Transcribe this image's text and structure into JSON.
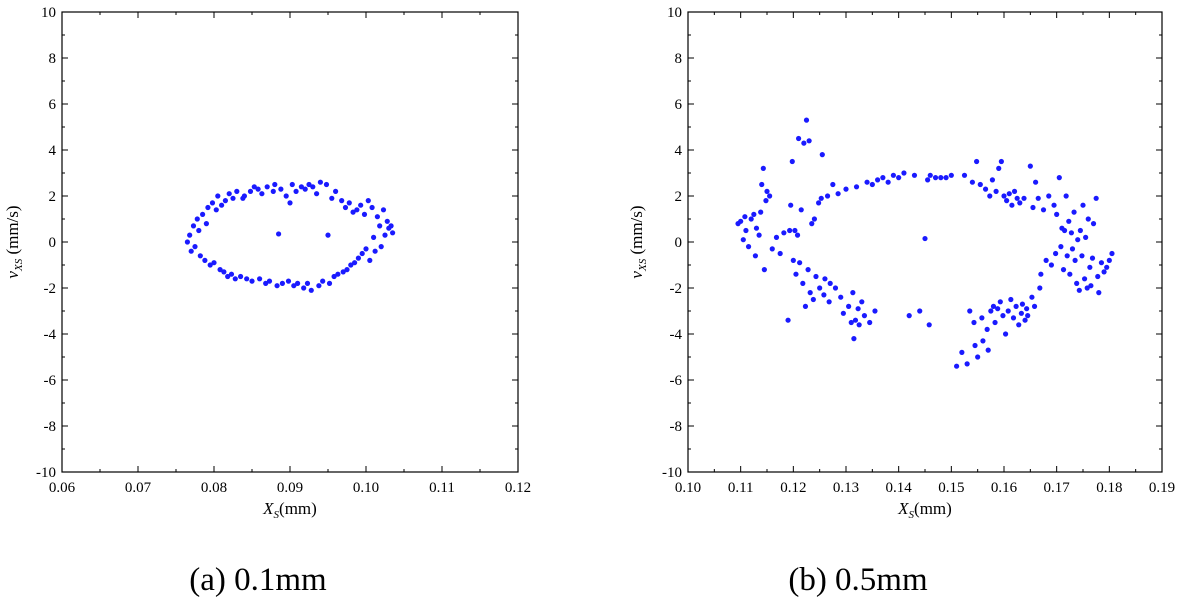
{
  "chart_data": [
    {
      "type": "scatter",
      "caption": "(a) 0.1mm",
      "xlabel": {
        "main": "X",
        "sub": "S",
        "rest": "(mm)"
      },
      "ylabel": {
        "main": "v",
        "sub": "XS",
        "rest": " (mm/s)"
      },
      "xlim": [
        0.06,
        0.12
      ],
      "ylim": [
        -10,
        10
      ],
      "xticks": [
        "0.06",
        "0.07",
        "0.08",
        "0.09",
        "0.10",
        "0.11",
        "0.12"
      ],
      "yticks": [
        "-10",
        "-8",
        "-6",
        "-4",
        "-2",
        "0",
        "2",
        "4",
        "6",
        "8",
        "10"
      ],
      "color": "#1a1aff",
      "points": [
        [
          0.0765,
          0.0
        ],
        [
          0.0768,
          0.3
        ],
        [
          0.077,
          -0.4
        ],
        [
          0.0773,
          0.7
        ],
        [
          0.0775,
          -0.2
        ],
        [
          0.0778,
          1.0
        ],
        [
          0.078,
          0.5
        ],
        [
          0.0782,
          -0.6
        ],
        [
          0.0785,
          1.2
        ],
        [
          0.0788,
          -0.8
        ],
        [
          0.079,
          0.8
        ],
        [
          0.0792,
          1.5
        ],
        [
          0.0795,
          -1.0
        ],
        [
          0.0798,
          1.7
        ],
        [
          0.08,
          -0.9
        ],
        [
          0.0803,
          1.4
        ],
        [
          0.0805,
          2.0
        ],
        [
          0.0808,
          -1.2
        ],
        [
          0.081,
          1.6
        ],
        [
          0.0813,
          -1.3
        ],
        [
          0.0815,
          1.8
        ],
        [
          0.0818,
          -1.5
        ],
        [
          0.082,
          2.1
        ],
        [
          0.0823,
          -1.4
        ],
        [
          0.0825,
          1.9
        ],
        [
          0.0828,
          -1.6
        ],
        [
          0.083,
          2.2
        ],
        [
          0.0835,
          -1.5
        ],
        [
          0.0838,
          1.9
        ],
        [
          0.084,
          2.0
        ],
        [
          0.0843,
          -1.6
        ],
        [
          0.0848,
          2.2
        ],
        [
          0.085,
          -1.7
        ],
        [
          0.0853,
          2.4
        ],
        [
          0.0858,
          2.3
        ],
        [
          0.086,
          -1.6
        ],
        [
          0.0863,
          2.1
        ],
        [
          0.0868,
          -1.8
        ],
        [
          0.087,
          2.4
        ],
        [
          0.0873,
          -1.7
        ],
        [
          0.0878,
          2.2
        ],
        [
          0.088,
          2.5
        ],
        [
          0.0883,
          -1.9
        ],
        [
          0.0885,
          0.35
        ],
        [
          0.0888,
          2.3
        ],
        [
          0.089,
          -1.8
        ],
        [
          0.0895,
          2.0
        ],
        [
          0.0898,
          -1.7
        ],
        [
          0.09,
          1.7
        ],
        [
          0.0903,
          2.5
        ],
        [
          0.0905,
          -1.9
        ],
        [
          0.0908,
          2.2
        ],
        [
          0.091,
          -1.8
        ],
        [
          0.0915,
          2.4
        ],
        [
          0.0918,
          -2.0
        ],
        [
          0.092,
          2.3
        ],
        [
          0.0923,
          -1.8
        ],
        [
          0.0925,
          2.5
        ],
        [
          0.0928,
          -2.1
        ],
        [
          0.093,
          2.4
        ],
        [
          0.0935,
          2.1
        ],
        [
          0.0938,
          -1.9
        ],
        [
          0.094,
          2.6
        ],
        [
          0.0943,
          -1.7
        ],
        [
          0.0948,
          2.5
        ],
        [
          0.095,
          0.3
        ],
        [
          0.0952,
          -1.8
        ],
        [
          0.0955,
          1.9
        ],
        [
          0.0958,
          -1.5
        ],
        [
          0.096,
          2.2
        ],
        [
          0.0963,
          -1.4
        ],
        [
          0.0968,
          1.8
        ],
        [
          0.097,
          -1.3
        ],
        [
          0.0973,
          1.5
        ],
        [
          0.0975,
          -1.2
        ],
        [
          0.0978,
          1.7
        ],
        [
          0.098,
          -1.0
        ],
        [
          0.0983,
          1.3
        ],
        [
          0.0985,
          -0.9
        ],
        [
          0.0988,
          1.4
        ],
        [
          0.099,
          -0.7
        ],
        [
          0.0993,
          1.6
        ],
        [
          0.0995,
          -0.5
        ],
        [
          0.0998,
          1.2
        ],
        [
          0.1,
          -0.3
        ],
        [
          0.1003,
          1.8
        ],
        [
          0.1005,
          -0.8
        ],
        [
          0.1008,
          1.5
        ],
        [
          0.101,
          0.2
        ],
        [
          0.1012,
          -0.4
        ],
        [
          0.1015,
          1.1
        ],
        [
          0.1018,
          0.7
        ],
        [
          0.102,
          -0.2
        ],
        [
          0.1023,
          1.4
        ],
        [
          0.1025,
          0.3
        ],
        [
          0.1028,
          0.9
        ],
        [
          0.103,
          0.6
        ],
        [
          0.1033,
          0.7
        ],
        [
          0.1035,
          0.4
        ]
      ]
    },
    {
      "type": "scatter",
      "caption": "(b)  0.5mm",
      "xlabel": {
        "main": "X",
        "sub": "S",
        "rest": "(mm)"
      },
      "ylabel": {
        "main": "v",
        "sub": "XS",
        "rest": " (mm/s)"
      },
      "xlim": [
        0.1,
        0.19
      ],
      "ylim": [
        -10,
        10
      ],
      "xticks": [
        "0.10",
        "0.11",
        "0.12",
        "0.13",
        "0.14",
        "0.15",
        "0.16",
        "0.17",
        "0.18",
        "0.19"
      ],
      "yticks": [
        "-10",
        "-8",
        "-6",
        "-4",
        "-2",
        "0",
        "2",
        "4",
        "6",
        "8",
        "10"
      ],
      "color": "#1a1aff",
      "points": [
        [
          0.1095,
          0.8
        ],
        [
          0.11,
          0.9
        ],
        [
          0.1105,
          0.1
        ],
        [
          0.1108,
          1.1
        ],
        [
          0.111,
          0.5
        ],
        [
          0.1115,
          -0.2
        ],
        [
          0.112,
          1.0
        ],
        [
          0.1125,
          1.2
        ],
        [
          0.1128,
          -0.6
        ],
        [
          0.113,
          0.6
        ],
        [
          0.1135,
          0.3
        ],
        [
          0.1138,
          1.3
        ],
        [
          0.114,
          2.5
        ],
        [
          0.1143,
          3.2
        ],
        [
          0.1145,
          -1.2
        ],
        [
          0.1148,
          1.8
        ],
        [
          0.115,
          2.2
        ],
        [
          0.1155,
          2.0
        ],
        [
          0.116,
          -0.3
        ],
        [
          0.1168,
          0.2
        ],
        [
          0.1175,
          -0.5
        ],
        [
          0.1182,
          0.4
        ],
        [
          0.119,
          -3.4
        ],
        [
          0.1193,
          0.5
        ],
        [
          0.1195,
          1.6
        ],
        [
          0.1198,
          3.5
        ],
        [
          0.12,
          -0.8
        ],
        [
          0.1203,
          0.5
        ],
        [
          0.1205,
          -1.4
        ],
        [
          0.1208,
          0.3
        ],
        [
          0.121,
          4.5
        ],
        [
          0.1212,
          -0.9
        ],
        [
          0.1215,
          1.4
        ],
        [
          0.1218,
          -1.8
        ],
        [
          0.122,
          4.3
        ],
        [
          0.1223,
          -2.8
        ],
        [
          0.1225,
          5.3
        ],
        [
          0.1228,
          -1.2
        ],
        [
          0.123,
          4.4
        ],
        [
          0.1232,
          -2.2
        ],
        [
          0.1235,
          0.8
        ],
        [
          0.1238,
          -2.5
        ],
        [
          0.124,
          1.0
        ],
        [
          0.1243,
          -1.5
        ],
        [
          0.1248,
          1.7
        ],
        [
          0.125,
          -2.0
        ],
        [
          0.1253,
          1.9
        ],
        [
          0.1255,
          3.8
        ],
        [
          0.1258,
          -2.3
        ],
        [
          0.126,
          -1.6
        ],
        [
          0.1265,
          2.0
        ],
        [
          0.1268,
          -2.6
        ],
        [
          0.127,
          -1.8
        ],
        [
          0.1275,
          2.5
        ],
        [
          0.128,
          -2.0
        ],
        [
          0.1285,
          2.1
        ],
        [
          0.129,
          -2.4
        ],
        [
          0.1295,
          -3.1
        ],
        [
          0.13,
          2.3
        ],
        [
          0.1305,
          -2.8
        ],
        [
          0.131,
          -3.5
        ],
        [
          0.1313,
          -2.2
        ],
        [
          0.1315,
          -4.2
        ],
        [
          0.1318,
          -3.4
        ],
        [
          0.132,
          2.4
        ],
        [
          0.1323,
          -2.9
        ],
        [
          0.1325,
          -3.6
        ],
        [
          0.133,
          -2.6
        ],
        [
          0.1335,
          -3.2
        ],
        [
          0.134,
          2.6
        ],
        [
          0.1345,
          -3.5
        ],
        [
          0.135,
          2.5
        ],
        [
          0.1355,
          -3.0
        ],
        [
          0.136,
          2.7
        ],
        [
          0.137,
          2.8
        ],
        [
          0.138,
          2.6
        ],
        [
          0.139,
          2.9
        ],
        [
          0.14,
          2.8
        ],
        [
          0.141,
          3.0
        ],
        [
          0.142,
          -3.2
        ],
        [
          0.143,
          2.9
        ],
        [
          0.144,
          -3.0
        ],
        [
          0.145,
          0.15
        ],
        [
          0.1455,
          2.7
        ],
        [
          0.1458,
          -3.6
        ],
        [
          0.146,
          2.9
        ],
        [
          0.147,
          2.8
        ],
        [
          0.148,
          2.8
        ],
        [
          0.149,
          2.8
        ],
        [
          0.15,
          2.9
        ],
        [
          0.151,
          -5.4
        ],
        [
          0.152,
          -4.8
        ],
        [
          0.1525,
          2.9
        ],
        [
          0.153,
          -5.3
        ],
        [
          0.1535,
          -3.0
        ],
        [
          0.154,
          2.6
        ],
        [
          0.1543,
          -3.5
        ],
        [
          0.1545,
          -4.5
        ],
        [
          0.1548,
          3.5
        ],
        [
          0.155,
          -5.0
        ],
        [
          0.1555,
          2.5
        ],
        [
          0.1558,
          -3.3
        ],
        [
          0.156,
          -4.3
        ],
        [
          0.1565,
          2.3
        ],
        [
          0.1568,
          -3.8
        ],
        [
          0.157,
          -4.7
        ],
        [
          0.1573,
          2.0
        ],
        [
          0.1575,
          -3.0
        ],
        [
          0.1578,
          2.7
        ],
        [
          0.158,
          -2.8
        ],
        [
          0.1583,
          -3.5
        ],
        [
          0.1585,
          2.2
        ],
        [
          0.1588,
          -2.9
        ],
        [
          0.159,
          3.2
        ],
        [
          0.1593,
          -2.6
        ],
        [
          0.1595,
          3.5
        ],
        [
          0.1598,
          -3.2
        ],
        [
          0.16,
          2.0
        ],
        [
          0.1603,
          -4.0
        ],
        [
          0.1605,
          1.8
        ],
        [
          0.1608,
          -3.0
        ],
        [
          0.161,
          2.1
        ],
        [
          0.1613,
          -2.5
        ],
        [
          0.1615,
          1.6
        ],
        [
          0.1618,
          -3.3
        ],
        [
          0.162,
          2.2
        ],
        [
          0.1623,
          -2.8
        ],
        [
          0.1625,
          1.9
        ],
        [
          0.1628,
          -3.6
        ],
        [
          0.163,
          1.7
        ],
        [
          0.1633,
          -3.1
        ],
        [
          0.1635,
          -2.7
        ],
        [
          0.1638,
          1.9
        ],
        [
          0.164,
          -3.4
        ],
        [
          0.1643,
          -2.9
        ],
        [
          0.1645,
          -3.2
        ],
        [
          0.165,
          3.3
        ],
        [
          0.1653,
          -2.4
        ],
        [
          0.1655,
          1.5
        ],
        [
          0.1658,
          -2.8
        ],
        [
          0.166,
          2.6
        ],
        [
          0.1665,
          1.9
        ],
        [
          0.1668,
          -2.0
        ],
        [
          0.167,
          -1.4
        ],
        [
          0.1675,
          1.4
        ],
        [
          0.168,
          -0.8
        ],
        [
          0.1685,
          2.0
        ],
        [
          0.169,
          -1.0
        ],
        [
          0.1695,
          1.6
        ],
        [
          0.1698,
          -0.5
        ],
        [
          0.17,
          1.2
        ],
        [
          0.1705,
          2.8
        ],
        [
          0.1708,
          -0.2
        ],
        [
          0.171,
          0.6
        ],
        [
          0.1713,
          -1.2
        ],
        [
          0.1715,
          0.5
        ],
        [
          0.1718,
          2.0
        ],
        [
          0.172,
          -0.6
        ],
        [
          0.1723,
          0.9
        ],
        [
          0.1725,
          -1.4
        ],
        [
          0.1728,
          0.4
        ],
        [
          0.173,
          -0.3
        ],
        [
          0.1733,
          1.3
        ],
        [
          0.1735,
          -0.8
        ],
        [
          0.1738,
          -1.8
        ],
        [
          0.174,
          0.1
        ],
        [
          0.1743,
          -2.1
        ],
        [
          0.1745,
          0.5
        ],
        [
          0.1748,
          -0.6
        ],
        [
          0.175,
          1.6
        ],
        [
          0.1753,
          -1.6
        ],
        [
          0.1755,
          0.2
        ],
        [
          0.1758,
          -2.0
        ],
        [
          0.176,
          1.0
        ],
        [
          0.1763,
          -1.1
        ],
        [
          0.1765,
          -1.9
        ],
        [
          0.1768,
          -0.7
        ],
        [
          0.177,
          0.8
        ],
        [
          0.1775,
          1.9
        ],
        [
          0.1778,
          -1.5
        ],
        [
          0.178,
          -2.2
        ],
        [
          0.1785,
          -0.9
        ],
        [
          0.179,
          -1.3
        ],
        [
          0.1795,
          -1.1
        ],
        [
          0.18,
          -0.8
        ],
        [
          0.1805,
          -0.5
        ]
      ]
    }
  ]
}
